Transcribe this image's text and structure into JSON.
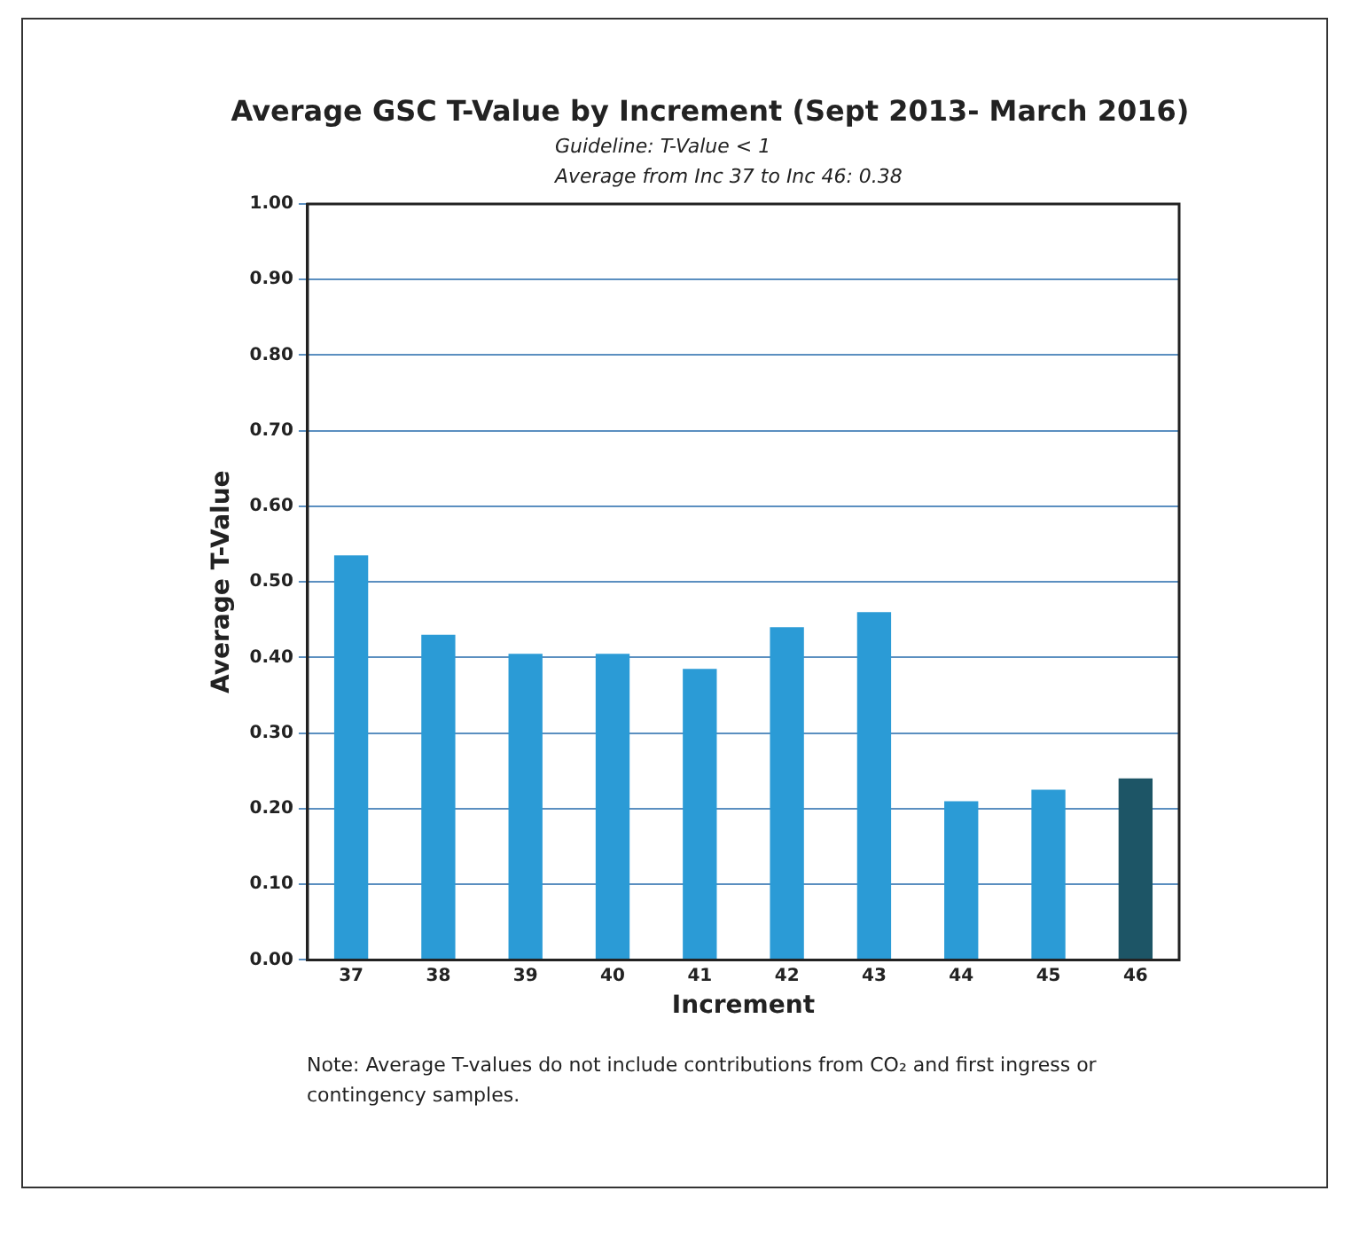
{
  "chart_data": {
    "type": "bar",
    "title": "Average GSC T-Value by Increment (Sept 2013- March 2016)",
    "subtitle": "Guideline: T-Value < 1",
    "xlabel": "Increment",
    "ylabel": "Average T-Value",
    "annotations": [
      "Average from Inc 37 to Inc 46:   0.38",
      "Note:  Average T-values do not include contributions from CO₂ and first ingress or contingency samples."
    ],
    "categories": [
      "37",
      "38",
      "39",
      "40",
      "41",
      "42",
      "43",
      "44",
      "45",
      "46"
    ],
    "values": [
      0.535,
      0.43,
      0.405,
      0.405,
      0.385,
      0.44,
      0.46,
      0.21,
      0.225,
      0.24
    ],
    "colors": [
      "#2b9bd6",
      "#2b9bd6",
      "#2b9bd6",
      "#2b9bd6",
      "#2b9bd6",
      "#2b9bd6",
      "#2b9bd6",
      "#2b9bd6",
      "#2b9bd6",
      "#1d5566"
    ],
    "ylim": [
      0,
      1
    ],
    "yticks": [
      {
        "value": 0,
        "label": "0.00"
      },
      {
        "value": 0.1,
        "label": "0.10"
      },
      {
        "value": 0.2,
        "label": "0.20"
      },
      {
        "value": 0.3,
        "label": "0.30"
      },
      {
        "value": 0.4,
        "label": "0.40"
      },
      {
        "value": 0.5,
        "label": "0.50"
      },
      {
        "value": 0.6,
        "label": "0.60"
      },
      {
        "value": 0.7,
        "label": "0.70"
      },
      {
        "value": 0.8,
        "label": "0.80"
      },
      {
        "value": 0.9,
        "label": "0.90"
      },
      {
        "value": 1,
        "label": "1.00"
      }
    ],
    "grid": "y"
  }
}
